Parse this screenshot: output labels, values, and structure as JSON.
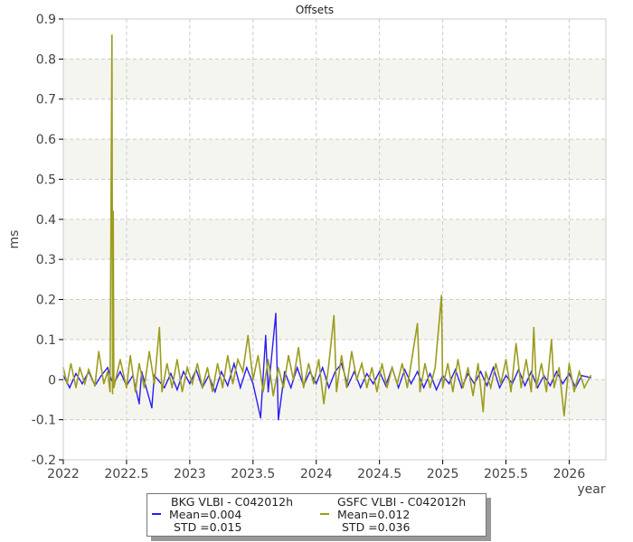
{
  "chart_data": {
    "type": "line",
    "title": "Offsets",
    "xlabel": "year",
    "ylabel": "ms",
    "xlim": [
      2022,
      2026.29
    ],
    "ylim": [
      -0.2,
      0.9
    ],
    "xticks": [
      "2022",
      "2022.5",
      "2023",
      "2023.5",
      "2024",
      "2024.5",
      "2025",
      "2025.5",
      "2026"
    ],
    "yticks": [
      "-0.2",
      "-0.1",
      "0",
      "0.1",
      "0.2",
      "0.3",
      "0.4",
      "0.5",
      "0.6",
      "0.7",
      "0.8",
      "0.9"
    ],
    "grid": true,
    "legend_position": "bottom",
    "series": [
      {
        "name": "BKG VLBI - C042012h",
        "mean": "Mean=0.004",
        "std": "STD =0.015",
        "color": "#2a1ef0",
        "points": [
          [
            2022.0,
            0.01
          ],
          [
            2022.05,
            -0.02
          ],
          [
            2022.1,
            0.015
          ],
          [
            2022.15,
            -0.01
          ],
          [
            2022.2,
            0.02
          ],
          [
            2022.25,
            -0.015
          ],
          [
            2022.3,
            0.01
          ],
          [
            2022.35,
            0.03
          ],
          [
            2022.38,
            0.0
          ],
          [
            2022.4,
            -0.01
          ],
          [
            2022.45,
            0.02
          ],
          [
            2022.5,
            -0.015
          ],
          [
            2022.55,
            0.01
          ],
          [
            2022.6,
            -0.06
          ],
          [
            2022.62,
            0.02
          ],
          [
            2022.7,
            -0.07
          ],
          [
            2022.72,
            0.01
          ],
          [
            2022.8,
            -0.02
          ],
          [
            2022.85,
            0.015
          ],
          [
            2022.9,
            -0.025
          ],
          [
            2022.95,
            0.02
          ],
          [
            2023.0,
            -0.01
          ],
          [
            2023.05,
            0.025
          ],
          [
            2023.1,
            -0.02
          ],
          [
            2023.15,
            0.01
          ],
          [
            2023.2,
            -0.03
          ],
          [
            2023.25,
            0.02
          ],
          [
            2023.3,
            -0.015
          ],
          [
            2023.35,
            0.04
          ],
          [
            2023.4,
            -0.02
          ],
          [
            2023.45,
            0.03
          ],
          [
            2023.5,
            -0.01
          ],
          [
            2023.56,
            -0.095
          ],
          [
            2023.6,
            0.11
          ],
          [
            2023.62,
            -0.03
          ],
          [
            2023.68,
            0.165
          ],
          [
            2023.7,
            -0.1
          ],
          [
            2023.75,
            0.02
          ],
          [
            2023.8,
            -0.02
          ],
          [
            2023.85,
            0.03
          ],
          [
            2023.9,
            -0.015
          ],
          [
            2023.95,
            0.02
          ],
          [
            2024.0,
            -0.01
          ],
          [
            2024.05,
            0.03
          ],
          [
            2024.1,
            -0.02
          ],
          [
            2024.15,
            0.02
          ],
          [
            2024.2,
            0.04
          ],
          [
            2024.25,
            -0.015
          ],
          [
            2024.3,
            0.02
          ],
          [
            2024.35,
            -0.02
          ],
          [
            2024.4,
            0.015
          ],
          [
            2024.45,
            -0.01
          ],
          [
            2024.5,
            0.02
          ],
          [
            2024.55,
            -0.015
          ],
          [
            2024.6,
            0.03
          ],
          [
            2024.65,
            -0.02
          ],
          [
            2024.7,
            0.025
          ],
          [
            2024.75,
            -0.01
          ],
          [
            2024.8,
            0.02
          ],
          [
            2024.85,
            -0.02
          ],
          [
            2024.9,
            0.015
          ],
          [
            2024.95,
            -0.025
          ],
          [
            2025.0,
            0.01
          ],
          [
            2025.05,
            -0.01
          ],
          [
            2025.1,
            0.025
          ],
          [
            2025.15,
            -0.02
          ],
          [
            2025.2,
            0.015
          ],
          [
            2025.25,
            -0.01
          ],
          [
            2025.3,
            0.02
          ],
          [
            2025.35,
            -0.015
          ],
          [
            2025.4,
            0.03
          ],
          [
            2025.45,
            -0.02
          ],
          [
            2025.5,
            0.01
          ],
          [
            2025.55,
            -0.01
          ],
          [
            2025.6,
            0.025
          ],
          [
            2025.65,
            -0.015
          ],
          [
            2025.7,
            0.02
          ],
          [
            2025.75,
            -0.02
          ],
          [
            2025.8,
            0.01
          ],
          [
            2025.85,
            -0.015
          ],
          [
            2025.9,
            0.02
          ],
          [
            2025.95,
            -0.01
          ],
          [
            2026.0,
            0.015
          ],
          [
            2026.05,
            -0.02
          ],
          [
            2026.1,
            0.01
          ],
          [
            2026.17,
            0.005
          ]
        ]
      },
      {
        "name": "GSFC VLBI - C042012h",
        "mean": "Mean=0.012",
        "std": "STD =0.036",
        "color": "#9c9c1e",
        "points": [
          [
            2022.0,
            0.03
          ],
          [
            2022.03,
            -0.01
          ],
          [
            2022.06,
            0.04
          ],
          [
            2022.1,
            -0.02
          ],
          [
            2022.13,
            0.03
          ],
          [
            2022.17,
            -0.01
          ],
          [
            2022.2,
            0.025
          ],
          [
            2022.25,
            -0.015
          ],
          [
            2022.28,
            0.07
          ],
          [
            2022.32,
            -0.01
          ],
          [
            2022.35,
            0.02
          ],
          [
            2022.37,
            -0.03
          ],
          [
            2022.385,
            0.86
          ],
          [
            2022.39,
            -0.035
          ],
          [
            2022.395,
            0.42
          ],
          [
            2022.4,
            -0.02
          ],
          [
            2022.45,
            0.05
          ],
          [
            2022.5,
            -0.02
          ],
          [
            2022.53,
            0.06
          ],
          [
            2022.57,
            -0.03
          ],
          [
            2022.6,
            0.04
          ],
          [
            2022.64,
            -0.02
          ],
          [
            2022.68,
            0.07
          ],
          [
            2022.72,
            -0.01
          ],
          [
            2022.76,
            0.13
          ],
          [
            2022.78,
            -0.03
          ],
          [
            2022.82,
            0.04
          ],
          [
            2022.86,
            -0.02
          ],
          [
            2022.9,
            0.05
          ],
          [
            2022.94,
            -0.03
          ],
          [
            2022.98,
            0.03
          ],
          [
            2023.02,
            -0.01
          ],
          [
            2023.06,
            0.04
          ],
          [
            2023.1,
            -0.02
          ],
          [
            2023.14,
            0.03
          ],
          [
            2023.18,
            -0.03
          ],
          [
            2023.22,
            0.04
          ],
          [
            2023.26,
            -0.02
          ],
          [
            2023.3,
            0.06
          ],
          [
            2023.34,
            -0.01
          ],
          [
            2023.38,
            0.05
          ],
          [
            2023.42,
            0.02
          ],
          [
            2023.46,
            0.11
          ],
          [
            2023.5,
            0.0
          ],
          [
            2023.54,
            0.06
          ],
          [
            2023.58,
            -0.03
          ],
          [
            2023.62,
            0.05
          ],
          [
            2023.66,
            -0.04
          ],
          [
            2023.7,
            0.03
          ],
          [
            2023.74,
            -0.02
          ],
          [
            2023.78,
            0.06
          ],
          [
            2023.82,
            0.0
          ],
          [
            2023.86,
            0.08
          ],
          [
            2023.9,
            -0.02
          ],
          [
            2023.94,
            0.04
          ],
          [
            2023.98,
            -0.01
          ],
          [
            2024.02,
            0.05
          ],
          [
            2024.06,
            -0.06
          ],
          [
            2024.1,
            0.04
          ],
          [
            2024.14,
            0.16
          ],
          [
            2024.16,
            -0.03
          ],
          [
            2024.2,
            0.06
          ],
          [
            2024.24,
            -0.02
          ],
          [
            2024.28,
            0.07
          ],
          [
            2024.32,
            0.0
          ],
          [
            2024.36,
            0.04
          ],
          [
            2024.4,
            -0.02
          ],
          [
            2024.44,
            0.03
          ],
          [
            2024.48,
            -0.03
          ],
          [
            2024.52,
            0.04
          ],
          [
            2024.56,
            -0.02
          ],
          [
            2024.6,
            0.03
          ],
          [
            2024.64,
            -0.01
          ],
          [
            2024.68,
            0.04
          ],
          [
            2024.72,
            -0.02
          ],
          [
            2024.76,
            0.06
          ],
          [
            2024.8,
            0.14
          ],
          [
            2024.82,
            -0.03
          ],
          [
            2024.86,
            0.04
          ],
          [
            2024.9,
            -0.02
          ],
          [
            2024.94,
            0.03
          ],
          [
            2024.99,
            0.21
          ],
          [
            2025.0,
            -0.02
          ],
          [
            2025.04,
            0.04
          ],
          [
            2025.08,
            -0.03
          ],
          [
            2025.12,
            0.05
          ],
          [
            2025.16,
            -0.02
          ],
          [
            2025.2,
            0.03
          ],
          [
            2025.24,
            -0.04
          ],
          [
            2025.28,
            0.04
          ],
          [
            2025.32,
            -0.08
          ],
          [
            2025.34,
            0.02
          ],
          [
            2025.38,
            -0.02
          ],
          [
            2025.42,
            0.04
          ],
          [
            2025.46,
            -0.01
          ],
          [
            2025.5,
            0.05
          ],
          [
            2025.54,
            -0.03
          ],
          [
            2025.58,
            0.09
          ],
          [
            2025.62,
            -0.02
          ],
          [
            2025.66,
            0.05
          ],
          [
            2025.7,
            -0.03
          ],
          [
            2025.72,
            0.13
          ],
          [
            2025.74,
            -0.02
          ],
          [
            2025.78,
            0.04
          ],
          [
            2025.82,
            -0.03
          ],
          [
            2025.86,
            0.1
          ],
          [
            2025.88,
            -0.02
          ],
          [
            2025.92,
            0.03
          ],
          [
            2025.96,
            -0.09
          ],
          [
            2026.0,
            0.04
          ],
          [
            2026.04,
            -0.03
          ],
          [
            2026.08,
            0.02
          ],
          [
            2026.12,
            -0.02
          ],
          [
            2026.17,
            0.01
          ]
        ]
      }
    ]
  }
}
